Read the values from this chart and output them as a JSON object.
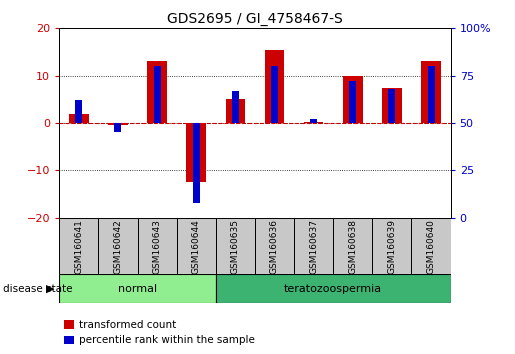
{
  "title": "GDS2695 / GI_4758467-S",
  "samples": [
    "GSM160641",
    "GSM160642",
    "GSM160643",
    "GSM160644",
    "GSM160635",
    "GSM160636",
    "GSM160637",
    "GSM160638",
    "GSM160639",
    "GSM160640"
  ],
  "transformed_count": [
    2.0,
    -0.5,
    13.0,
    -12.5,
    5.0,
    15.5,
    0.2,
    10.0,
    7.5,
    13.0
  ],
  "percentile_rank_raw": [
    62,
    45,
    80,
    8,
    67,
    80,
    52,
    72,
    68,
    80
  ],
  "ylim_left": [
    -20,
    20
  ],
  "ylim_right": [
    0,
    100
  ],
  "left_ticks": [
    -20,
    -10,
    0,
    10,
    20
  ],
  "right_ticks": [
    0,
    25,
    50,
    75,
    100
  ],
  "disease_groups": [
    {
      "label": "normal",
      "start": 0,
      "end": 4,
      "color": "#90EE90"
    },
    {
      "label": "teratozoospermia",
      "start": 4,
      "end": 10,
      "color": "#3CB371"
    }
  ],
  "bar_color_red": "#CC0000",
  "bar_color_blue": "#0000CC",
  "bg_color": "#FFFFFF",
  "plot_bg": "#FFFFFF",
  "grid_color": "#000000",
  "zero_line_color": "#CC0000",
  "tick_label_color_left": "#CC0000",
  "tick_label_color_right": "#0000CC",
  "red_bar_width": 0.5,
  "blue_bar_width": 0.18,
  "disease_state_label": "disease state",
  "sample_label_color": "#000000",
  "cell_bg": "#C8C8C8",
  "cell_border": "#000000"
}
